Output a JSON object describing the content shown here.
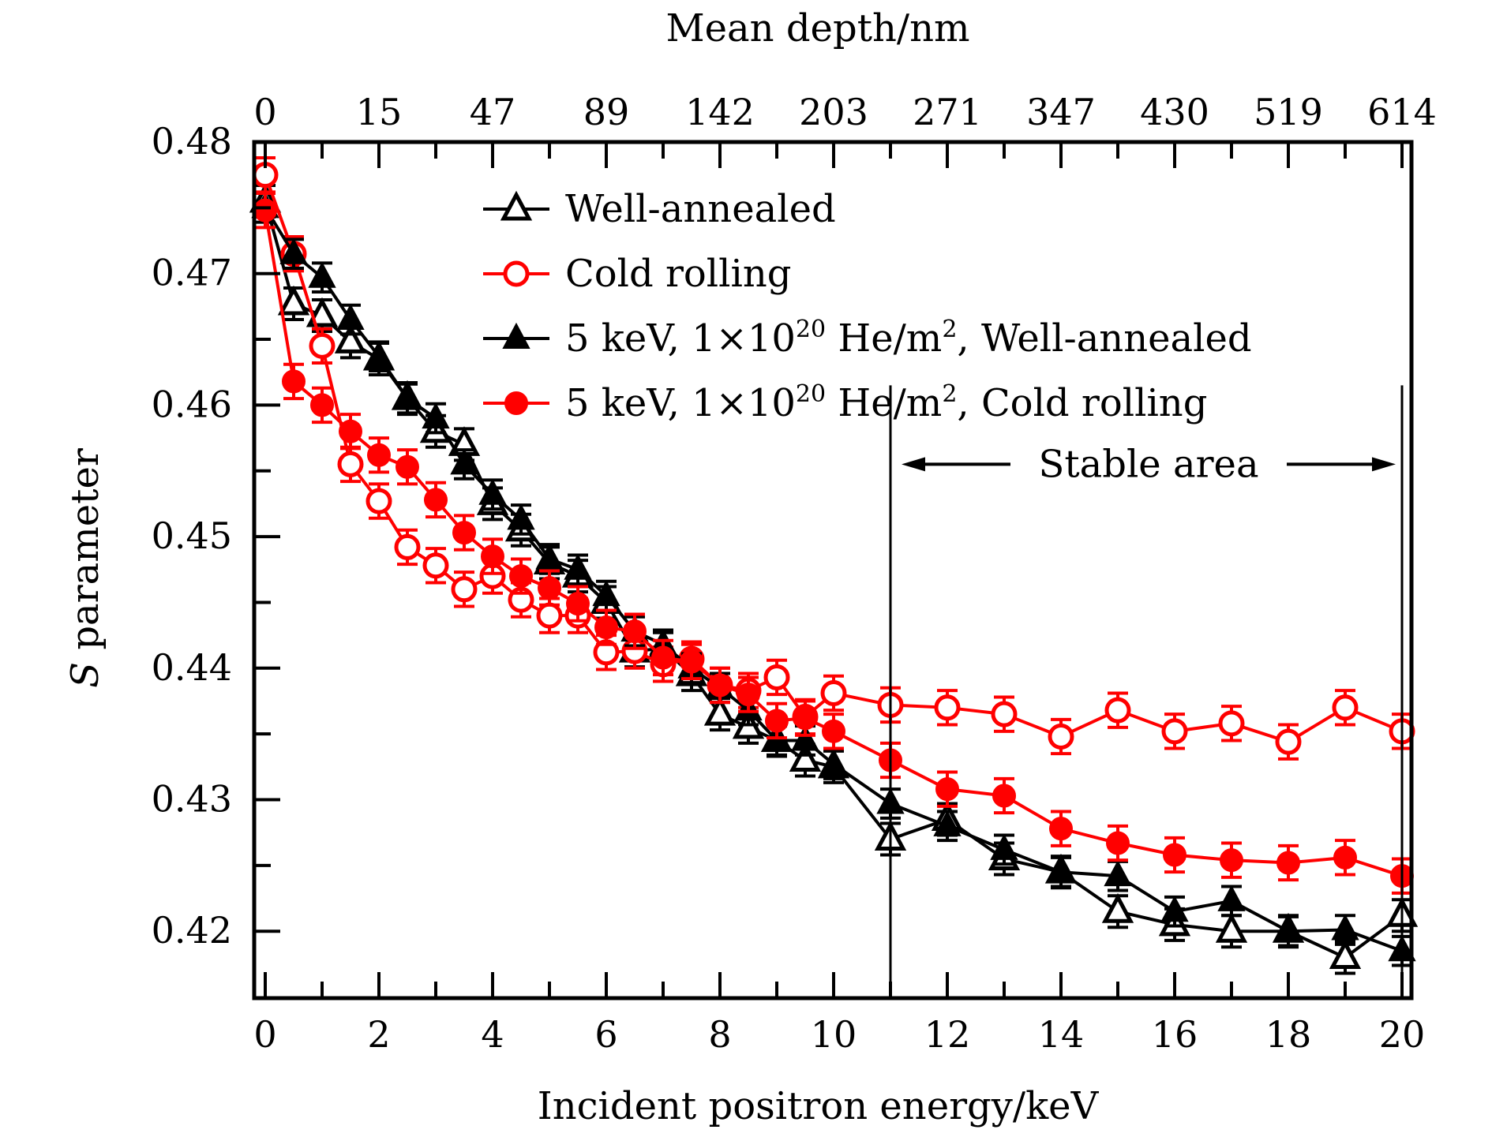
{
  "chart_data": {
    "type": "line",
    "title": "",
    "xlabel": "Incident positron energy/keV",
    "ylabel_italic": "S",
    "ylabel_rest": " parameter",
    "ylabel": "S parameter",
    "top_xlabel": "Mean depth/nm",
    "xlim": [
      -0.2,
      20.2
    ],
    "ylim": [
      0.415,
      0.48
    ],
    "x_ticks": [
      0,
      2,
      4,
      6,
      8,
      10,
      12,
      14,
      16,
      18,
      20
    ],
    "x_tick_labels": [
      "0",
      "2",
      "4",
      "6",
      "8",
      "10",
      "12",
      "14",
      "16",
      "18",
      "20"
    ],
    "y_ticks": [
      0.42,
      0.43,
      0.44,
      0.45,
      0.46,
      0.47,
      0.48
    ],
    "y_tick_labels": [
      "0.42",
      "0.43",
      "0.44",
      "0.45",
      "0.46",
      "0.47",
      "0.48"
    ],
    "top_ticks_kev": [
      0,
      2,
      4,
      6,
      8,
      10,
      12,
      14,
      16,
      18,
      20
    ],
    "top_tick_labels": [
      "0",
      "15",
      "47",
      "89",
      "142",
      "203",
      "271",
      "347",
      "430",
      "519",
      "614"
    ],
    "grid": false,
    "legend_position": "top-right",
    "x": [
      0,
      0.5,
      1,
      1.5,
      2,
      2.5,
      3,
      3.5,
      4,
      4.5,
      5,
      5.5,
      6,
      6.5,
      7,
      7.5,
      8,
      8.5,
      9,
      9.5,
      10,
      11,
      12,
      13,
      14,
      15,
      16,
      17,
      18,
      19,
      20
    ],
    "series": [
      {
        "name": "Well-annealed",
        "legend_label": "Well-annealed",
        "color": "#000000",
        "marker": "triangle-open",
        "values": [
          0.4755,
          0.4677,
          0.4668,
          0.4648,
          0.4635,
          0.4605,
          0.458,
          0.457,
          0.4525,
          0.4505,
          0.448,
          0.447,
          0.445,
          0.4413,
          0.4415,
          0.4395,
          0.4365,
          0.4355,
          0.4345,
          0.433,
          0.4325,
          0.427,
          0.4285,
          0.4255,
          0.4245,
          0.4215,
          0.4205,
          0.42,
          0.42,
          0.418,
          0.4212
        ],
        "error": 0.0012
      },
      {
        "name": "Cold rolling",
        "legend_label": "Cold rolling",
        "color": "#ff0000",
        "marker": "circle-open",
        "values": [
          0.4775,
          0.4715,
          0.4645,
          0.4555,
          0.4527,
          0.4492,
          0.4478,
          0.446,
          0.447,
          0.4452,
          0.444,
          0.444,
          0.4412,
          0.4413,
          0.4403,
          0.4407,
          0.4387,
          0.4383,
          0.4393,
          0.4363,
          0.4381,
          0.4372,
          0.437,
          0.4365,
          0.4348,
          0.4368,
          0.4352,
          0.4358,
          0.4344,
          0.437,
          0.4352
        ],
        "error": 0.0013
      },
      {
        "name": "5 keV, 1x10^20 He/m^2, Well-annealed",
        "legend_parts": [
          "5 keV, 1×10",
          "20",
          " He/m",
          "2",
          ", Well-annealed"
        ],
        "color": "#000000",
        "marker": "triangle-filled",
        "values": [
          0.475,
          0.4715,
          0.4697,
          0.4665,
          0.4637,
          0.4605,
          0.459,
          0.4555,
          0.4532,
          0.4513,
          0.4483,
          0.4475,
          0.4455,
          0.4428,
          0.4418,
          0.44,
          0.4385,
          0.4368,
          0.4345,
          0.4345,
          0.4327,
          0.4297,
          0.428,
          0.4262,
          0.4245,
          0.4242,
          0.4215,
          0.4223,
          0.42,
          0.4201,
          0.4185
        ],
        "error": 0.0011
      },
      {
        "name": "5 keV, 1x10^20 He/m^2, Cold rolling",
        "legend_parts": [
          "5 keV, 1×10",
          "20",
          " He/m",
          "2",
          ", Cold rolling"
        ],
        "color": "#ff0000",
        "marker": "circle-filled",
        "values": [
          0.4748,
          0.4618,
          0.46,
          0.458,
          0.4562,
          0.4553,
          0.4528,
          0.4503,
          0.4485,
          0.447,
          0.4461,
          0.4449,
          0.4431,
          0.4428,
          0.4408,
          0.4405,
          0.4387,
          0.438,
          0.436,
          0.4362,
          0.4352,
          0.433,
          0.4308,
          0.4303,
          0.4278,
          0.4267,
          0.4258,
          0.4254,
          0.4252,
          0.4256,
          0.4242
        ],
        "error": 0.0013
      }
    ],
    "annotations": [
      {
        "type": "vline",
        "x": 11,
        "from_y": 0.415,
        "to_y": 0.4615
      },
      {
        "type": "vline",
        "x": 20,
        "from_y": 0.415,
        "to_y": 0.4615
      },
      {
        "type": "double-arrow",
        "text": "Stable area",
        "x_from": 11,
        "x_to": 20,
        "y": 0.4555
      }
    ]
  }
}
